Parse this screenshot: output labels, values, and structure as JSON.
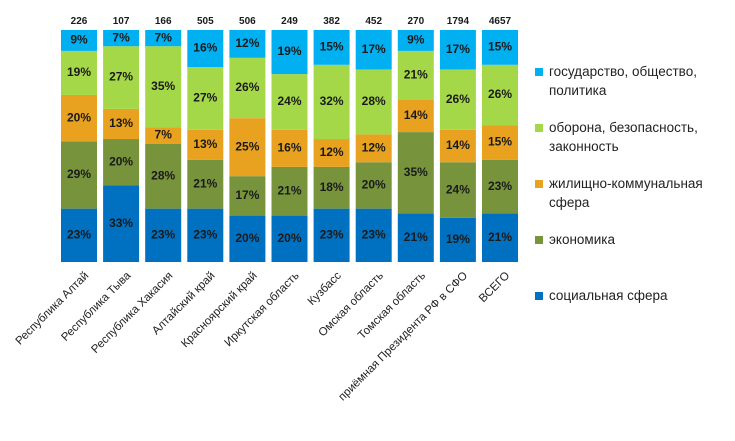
{
  "chart_data": {
    "type": "stacked_bar_percent",
    "categories": [
      "Республика Алтай",
      "Республика Тыва",
      "Республика Хакасия",
      "Алтайский край",
      "Красноярский край",
      "Иркутская область",
      "Кузбасс",
      "Омская область",
      "Томская область",
      "приёмная Президента РФ в СФО",
      "ВСЕГО"
    ],
    "totals": [
      226,
      107,
      166,
      505,
      506,
      249,
      382,
      452,
      270,
      1794,
      4657
    ],
    "ylim": [
      0,
      100
    ],
    "legend": "right",
    "series": [
      {
        "name": "социальная сфера",
        "color": "#0070c0",
        "values": [
          23,
          33,
          23,
          23,
          20,
          20,
          23,
          23,
          21,
          19,
          21
        ],
        "value_labels": [
          "23%",
          "33%",
          "23%",
          "23%",
          "20%",
          "20%",
          "23%",
          "23%",
          "21%",
          "19%",
          "21%"
        ]
      },
      {
        "name": "экономика",
        "color": "#77933c",
        "values": [
          29,
          20,
          28,
          21,
          17,
          21,
          18,
          20,
          35,
          24,
          23
        ],
        "value_labels": [
          "29%",
          "20%",
          "28%",
          "21%",
          "17%",
          "21%",
          "18%",
          "20%",
          "35%",
          "24%",
          "23%"
        ]
      },
      {
        "name": "жилищно-коммунальная сфера",
        "color": "#e8a21f",
        "values": [
          20,
          13,
          7,
          13,
          25,
          16,
          12,
          12,
          14,
          14,
          15
        ],
        "value_labels": [
          "20%",
          "13%",
          "7%",
          "13%",
          "25%",
          "16%",
          "12%",
          "12%",
          "14%",
          "14%",
          "15%"
        ]
      },
      {
        "name": "оборона, безопасность, законность",
        "color": "#a5d848",
        "values": [
          19,
          27,
          35,
          27,
          26,
          24,
          32,
          28,
          21,
          26,
          26
        ],
        "value_labels": [
          "19%",
          "27%",
          "35%",
          "27%",
          "26%",
          "24%",
          "32%",
          "28%",
          "21%",
          "26%",
          "26%"
        ]
      },
      {
        "name": "государство, общество, политика",
        "color": "#00b0f0",
        "values": [
          9,
          7,
          7,
          16,
          12,
          19,
          15,
          17,
          9,
          17,
          15
        ],
        "value_labels": [
          "9%",
          "7%",
          "7%",
          "16%",
          "12%",
          "19%",
          "15%",
          "17%",
          "9%",
          "17%",
          "15%"
        ]
      }
    ]
  }
}
